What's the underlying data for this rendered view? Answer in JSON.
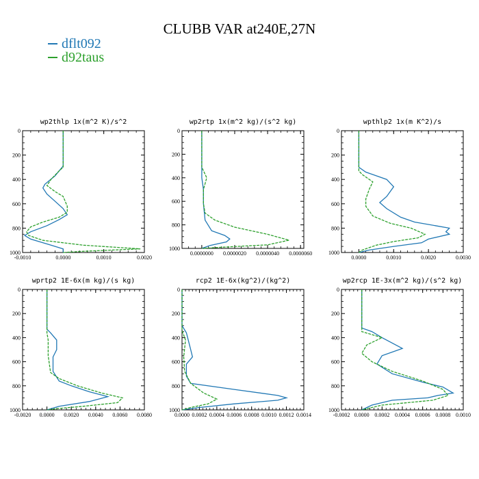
{
  "figure": {
    "title": "CLUBB VAR at240E,27N",
    "legend": [
      {
        "label": "dflt092",
        "color": "#1f77b4"
      },
      {
        "label": "d92taus",
        "color": "#2ca02c"
      }
    ]
  },
  "chart_data": [
    {
      "type": "line",
      "title": "wp2thlp  1x(m^2 K)/s^2",
      "xlim": [
        -0.001,
        0.002
      ],
      "ylim": [
        1000,
        0
      ],
      "xticks": [
        "-0.0010",
        "0.0000",
        "0.0010",
        "0.0020"
      ],
      "xtick_values": [
        -0.001,
        0.0,
        0.001,
        0.002
      ],
      "yticks": [
        0,
        200,
        400,
        600,
        800,
        1000
      ],
      "series": [
        {
          "name": "dflt092",
          "color": "#1f77b4",
          "points": [
            [
              0.0,
              0
            ],
            [
              0.0,
              290
            ],
            [
              -5e-05,
              310
            ],
            [
              -0.0002,
              370
            ],
            [
              -0.00045,
              440
            ],
            [
              -0.0005,
              470
            ],
            [
              -0.0004,
              520
            ],
            [
              -0.0002,
              580
            ],
            [
              0.0,
              640
            ],
            [
              0.0001,
              690
            ],
            [
              -0.0001,
              730
            ],
            [
              -0.0004,
              780
            ],
            [
              -0.0008,
              830
            ],
            [
              -0.00095,
              860
            ],
            [
              -0.0008,
              890
            ],
            [
              -0.0003,
              940
            ],
            [
              0.0,
              970
            ],
            [
              0.0,
              1000
            ]
          ]
        },
        {
          "name": "d92taus",
          "color": "#2ca02c",
          "points": [
            [
              0.0,
              0
            ],
            [
              0.0,
              300
            ],
            [
              -0.0001,
              330
            ],
            [
              -0.0003,
              400
            ],
            [
              -0.0004,
              450
            ],
            [
              -0.0002,
              500
            ],
            [
              0.0,
              540
            ],
            [
              0.0001,
              620
            ],
            [
              0.0001,
              670
            ],
            [
              -0.0001,
              710
            ],
            [
              -0.0005,
              750
            ],
            [
              -0.0008,
              790
            ],
            [
              -0.0009,
              830
            ],
            [
              -0.00085,
              860
            ],
            [
              -0.0005,
              900
            ],
            [
              0.0005,
              940
            ],
            [
              0.0019,
              970
            ],
            [
              0.0005,
              990
            ],
            [
              0.0,
              1000
            ]
          ]
        }
      ]
    },
    {
      "type": "line",
      "title": "wp2rtp  1x(m^2 kg)/(s^2 kg)",
      "xlim": [
        -1.2e-06,
        6.2e-06
      ],
      "ylim": [
        1000,
        0
      ],
      "xticks": [
        "0.0000000",
        "0.0000020",
        "0.0000040",
        "0.0000060"
      ],
      "xtick_values": [
        0.0,
        2e-06,
        4e-06,
        6e-06
      ],
      "yticks": [
        0,
        200,
        400,
        600,
        800,
        1000
      ],
      "series": [
        {
          "name": "dflt092",
          "color": "#1f77b4",
          "points": [
            [
              0.0,
              0
            ],
            [
              0.0,
              400
            ],
            [
              1e-07,
              500
            ],
            [
              1e-07,
              620
            ],
            [
              2e-07,
              760
            ],
            [
              6e-07,
              850
            ],
            [
              1.4e-06,
              890
            ],
            [
              1.7e-06,
              920
            ],
            [
              1.5e-06,
              945
            ],
            [
              5e-07,
              975
            ],
            [
              0.0,
              1000
            ]
          ]
        },
        {
          "name": "d92taus",
          "color": "#2ca02c",
          "points": [
            [
              0.0,
              0
            ],
            [
              0.0,
              310
            ],
            [
              3e-07,
              400
            ],
            [
              1e-07,
              500
            ],
            [
              1e-07,
              620
            ],
            [
              2e-07,
              700
            ],
            [
              8e-07,
              760
            ],
            [
              2e-06,
              820
            ],
            [
              4e-06,
              880
            ],
            [
              5.3e-06,
              930
            ],
            [
              4e-06,
              970
            ],
            [
              1.2e-06,
              990
            ],
            [
              0.0,
              1000
            ]
          ]
        }
      ]
    },
    {
      "type": "line",
      "title": "wpthlp2  1x(m K^2)/s",
      "xlim": [
        -0.0005,
        0.003
      ],
      "ylim": [
        1000,
        0
      ],
      "xticks": [
        "0.0000",
        "0.0010",
        "0.0020",
        "0.0030"
      ],
      "xtick_values": [
        0.0,
        0.001,
        0.002,
        0.003
      ],
      "yticks": [
        0,
        200,
        400,
        600,
        800,
        1000
      ],
      "series": [
        {
          "name": "dflt092",
          "color": "#1f77b4",
          "points": [
            [
              0.0,
              0
            ],
            [
              0.0,
              300
            ],
            [
              0.0002,
              340
            ],
            [
              0.0008,
              400
            ],
            [
              0.001,
              460
            ],
            [
              0.0008,
              540
            ],
            [
              0.0006,
              590
            ],
            [
              0.0008,
              640
            ],
            [
              0.0012,
              710
            ],
            [
              0.0016,
              750
            ],
            [
              0.0022,
              780
            ],
            [
              0.0026,
              800
            ],
            [
              0.0025,
              830
            ],
            [
              0.0026,
              850
            ],
            [
              0.002,
              890
            ],
            [
              0.0018,
              920
            ],
            [
              0.001,
              950
            ],
            [
              0.0003,
              980
            ],
            [
              0.0,
              1000
            ]
          ]
        },
        {
          "name": "d92taus",
          "color": "#2ca02c",
          "points": [
            [
              0.0,
              0
            ],
            [
              0.0,
              330
            ],
            [
              0.0001,
              360
            ],
            [
              0.0004,
              420
            ],
            [
              0.0003,
              480
            ],
            [
              0.0002,
              560
            ],
            [
              0.0002,
              620
            ],
            [
              0.0004,
              700
            ],
            [
              0.0009,
              760
            ],
            [
              0.0015,
              800
            ],
            [
              0.0019,
              850
            ],
            [
              0.0017,
              880
            ],
            [
              0.001,
              910
            ],
            [
              0.0005,
              940
            ],
            [
              0.0001,
              980
            ],
            [
              0.0,
              1000
            ]
          ]
        }
      ]
    },
    {
      "type": "line",
      "title": "wprtp2  1E-6x(m kg)/(s kg)",
      "xlim": [
        -0.002,
        0.008
      ],
      "ylim": [
        1000,
        0
      ],
      "xticks": [
        "-0.0020",
        "0.0000",
        "0.0020",
        "0.0040",
        "0.0060",
        "0.0080"
      ],
      "xtick_values": [
        -0.002,
        0.0,
        0.002,
        0.004,
        0.006,
        0.008
      ],
      "yticks": [
        0,
        200,
        400,
        600,
        800,
        1000
      ],
      "series": [
        {
          "name": "dflt092",
          "color": "#1f77b4",
          "points": [
            [
              0.0,
              0
            ],
            [
              0.0,
              330
            ],
            [
              0.0003,
              360
            ],
            [
              0.0008,
              420
            ],
            [
              0.0008,
              500
            ],
            [
              0.0005,
              560
            ],
            [
              0.0005,
              680
            ],
            [
              0.001,
              760
            ],
            [
              0.002,
              800
            ],
            [
              0.0035,
              850
            ],
            [
              0.005,
              890
            ],
            [
              0.0035,
              930
            ],
            [
              0.001,
              970
            ],
            [
              0.0,
              1000
            ]
          ]
        },
        {
          "name": "d92taus",
          "color": "#2ca02c",
          "points": [
            [
              0.0,
              0
            ],
            [
              0.0,
              360
            ],
            [
              0.0001,
              420
            ],
            [
              0.0001,
              550
            ],
            [
              0.0003,
              690
            ],
            [
              0.001,
              740
            ],
            [
              0.0025,
              800
            ],
            [
              0.0045,
              860
            ],
            [
              0.0062,
              900
            ],
            [
              0.0058,
              940
            ],
            [
              0.003,
              970
            ],
            [
              0.0008,
              990
            ],
            [
              0.0,
              1000
            ]
          ]
        }
      ]
    },
    {
      "type": "line",
      "title": "rcp2  1E-6x(kg^2)/(kg^2)",
      "xlim": [
        0.0,
        0.0014
      ],
      "ylim": [
        1000,
        0
      ],
      "xticks": [
        "0.0000",
        "0.0002",
        "0.0004",
        "0.0006",
        "0.0008",
        "0.0010",
        "0.0012",
        "0.0014"
      ],
      "xtick_values": [
        0.0,
        0.0002,
        0.0004,
        0.0006,
        0.0008,
        0.001,
        0.0012,
        0.0014
      ],
      "yticks": [
        0,
        200,
        400,
        600,
        800,
        1000
      ],
      "series": [
        {
          "name": "dflt092",
          "color": "#1f77b4",
          "points": [
            [
              0.0,
              0
            ],
            [
              0.0,
              300
            ],
            [
              5e-05,
              360
            ],
            [
              0.0001,
              500
            ],
            [
              0.00012,
              560
            ],
            [
              5e-05,
              620
            ],
            [
              5e-05,
              720
            ],
            [
              0.0001,
              780
            ],
            [
              0.0006,
              830
            ],
            [
              0.0011,
              880
            ],
            [
              0.0012,
              900
            ],
            [
              0.0011,
              920
            ],
            [
              0.0006,
              950
            ],
            [
              0.0002,
              980
            ],
            [
              0.0,
              1000
            ]
          ]
        },
        {
          "name": "d92taus",
          "color": "#2ca02c",
          "points": [
            [
              0.0,
              0
            ],
            [
              0.0,
              340
            ],
            [
              4e-05,
              420
            ],
            [
              2e-05,
              560
            ],
            [
              3e-05,
              680
            ],
            [
              0.0001,
              780
            ],
            [
              0.00025,
              860
            ],
            [
              0.0004,
              910
            ],
            [
              0.0003,
              950
            ],
            [
              0.0001,
              980
            ],
            [
              0.0,
              1000
            ]
          ]
        }
      ]
    },
    {
      "type": "line",
      "title": "wp2rcp  1E-3x(m^2 kg)/(s^2 kg)",
      "xlim": [
        -0.0002,
        0.001
      ],
      "ylim": [
        1000,
        0
      ],
      "xticks": [
        "-0.0002",
        "0.0000",
        "0.0002",
        "0.0004",
        "0.0006",
        "0.0008",
        "0.0010"
      ],
      "xtick_values": [
        -0.0002,
        0.0,
        0.0002,
        0.0004,
        0.0006,
        0.0008,
        0.001
      ],
      "yticks": [
        0,
        200,
        400,
        600,
        800,
        1000
      ],
      "series": [
        {
          "name": "dflt092",
          "color": "#1f77b4",
          "points": [
            [
              0.0,
              0
            ],
            [
              0.0,
              320
            ],
            [
              0.0001,
              350
            ],
            [
              0.0002,
              400
            ],
            [
              0.0004,
              490
            ],
            [
              0.0002,
              550
            ],
            [
              0.00015,
              620
            ],
            [
              0.0003,
              700
            ],
            [
              0.0006,
              770
            ],
            [
              0.0008,
              810
            ],
            [
              0.0009,
              860
            ],
            [
              0.00075,
              880
            ],
            [
              0.00065,
              900
            ],
            [
              0.0003,
              920
            ],
            [
              0.0001,
              960
            ],
            [
              0.0,
              1000
            ]
          ]
        },
        {
          "name": "d92taus",
          "color": "#2ca02c",
          "points": [
            [
              0.0,
              0
            ],
            [
              0.0,
              350
            ],
            [
              0.0002,
              400
            ],
            [
              5e-05,
              460
            ],
            [
              0.0,
              530
            ],
            [
              0.0001,
              600
            ],
            [
              0.0003,
              680
            ],
            [
              0.0006,
              760
            ],
            [
              0.0008,
              830
            ],
            [
              0.00085,
              880
            ],
            [
              0.0007,
              920
            ],
            [
              0.0002,
              960
            ],
            [
              0.0,
              1000
            ]
          ]
        }
      ]
    }
  ]
}
